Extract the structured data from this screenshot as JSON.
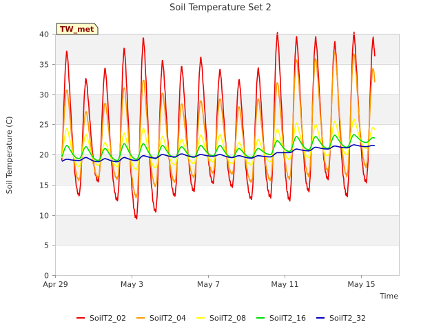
{
  "chart_data": {
    "type": "line",
    "title": "Soil Temperature Set 2",
    "xlabel": "Time",
    "ylabel": "Soil Temperature (C)",
    "station_label": "TW_met",
    "ylim": [
      0,
      40
    ],
    "xlim": [
      0,
      18
    ],
    "yticks": [
      0,
      5,
      10,
      15,
      20,
      25,
      30,
      35,
      40
    ],
    "xticks": [
      {
        "x": 0,
        "label": "Apr 29"
      },
      {
        "x": 4,
        "label": "May 3"
      },
      {
        "x": 8,
        "label": "May 7"
      },
      {
        "x": 12,
        "label": "May 11"
      },
      {
        "x": 16,
        "label": "May 15"
      }
    ],
    "grid": true,
    "banded_background": true,
    "legend_position": "bottom",
    "colors": {
      "SoilT2_02": "#ee0000",
      "SoilT2_04": "#ff9900",
      "SoilT2_08": "#ffff00",
      "SoilT2_16": "#00dd00",
      "SoilT2_32": "#0000bb"
    },
    "series": [
      {
        "name": "SoilT2_02",
        "note_daily": "daily min/max extremes read from chart",
        "daily_max": [
          37.0,
          32.5,
          34.2,
          37.5,
          39.2,
          35.5,
          34.5,
          36.0,
          34.0,
          32.3,
          34.2,
          40.0,
          39.3,
          39.3,
          38.5,
          40.0,
          39.2
        ],
        "daily_min": [
          15.3,
          13.3,
          15.6,
          12.5,
          9.5,
          10.6,
          13.2,
          14.0,
          15.3,
          14.7,
          12.7,
          13.0,
          12.5,
          14.0,
          16.0,
          13.2,
          15.5
        ]
      },
      {
        "name": "SoilT2_04",
        "daily_max": [
          30.8,
          27.2,
          28.6,
          31.2,
          32.5,
          30.3,
          28.5,
          29.0,
          29.3,
          28.0,
          29.3,
          32.0,
          35.8,
          36.0,
          37.0,
          36.8,
          34.3
        ],
        "daily_min": [
          17.5,
          15.8,
          16.2,
          16.0,
          13.0,
          14.8,
          15.5,
          16.3,
          17.0,
          16.8,
          15.5,
          15.8,
          16.0,
          16.5,
          17.3,
          16.5,
          18.0
        ]
      },
      {
        "name": "SoilT2_08",
        "daily_max": [
          24.3,
          23.3,
          22.0,
          23.5,
          24.3,
          23.0,
          22.5,
          23.2,
          23.3,
          22.0,
          22.5,
          24.2,
          25.2,
          25.0,
          25.5,
          25.8,
          24.5
        ],
        "daily_min": [
          18.5,
          18.0,
          18.2,
          18.0,
          17.5,
          17.8,
          18.3,
          18.5,
          18.8,
          18.5,
          18.3,
          18.8,
          19.2,
          19.5,
          19.8,
          20.0,
          21.0
        ]
      },
      {
        "name": "SoilT2_16",
        "daily_max": [
          21.5,
          21.3,
          21.0,
          21.8,
          21.8,
          21.5,
          21.3,
          21.5,
          21.5,
          21.0,
          21.0,
          22.3,
          23.0,
          23.0,
          23.2,
          23.3,
          22.8
        ],
        "daily_min": [
          19.2,
          19.3,
          19.0,
          19.0,
          19.2,
          19.3,
          19.5,
          19.5,
          19.8,
          19.5,
          19.5,
          20.0,
          20.5,
          20.8,
          21.0,
          21.2,
          22.0
        ]
      },
      {
        "name": "SoilT2_32",
        "daily_max": [
          19.2,
          19.5,
          19.3,
          19.5,
          19.8,
          20.0,
          20.1,
          20.0,
          20.0,
          19.8,
          19.8,
          20.3,
          20.9,
          21.2,
          21.4,
          21.6,
          21.5
        ],
        "daily_min": [
          18.8,
          19.0,
          18.8,
          18.8,
          19.0,
          19.4,
          19.6,
          19.6,
          19.7,
          19.5,
          19.4,
          19.6,
          20.3,
          20.6,
          20.9,
          21.1,
          21.3
        ]
      }
    ]
  }
}
